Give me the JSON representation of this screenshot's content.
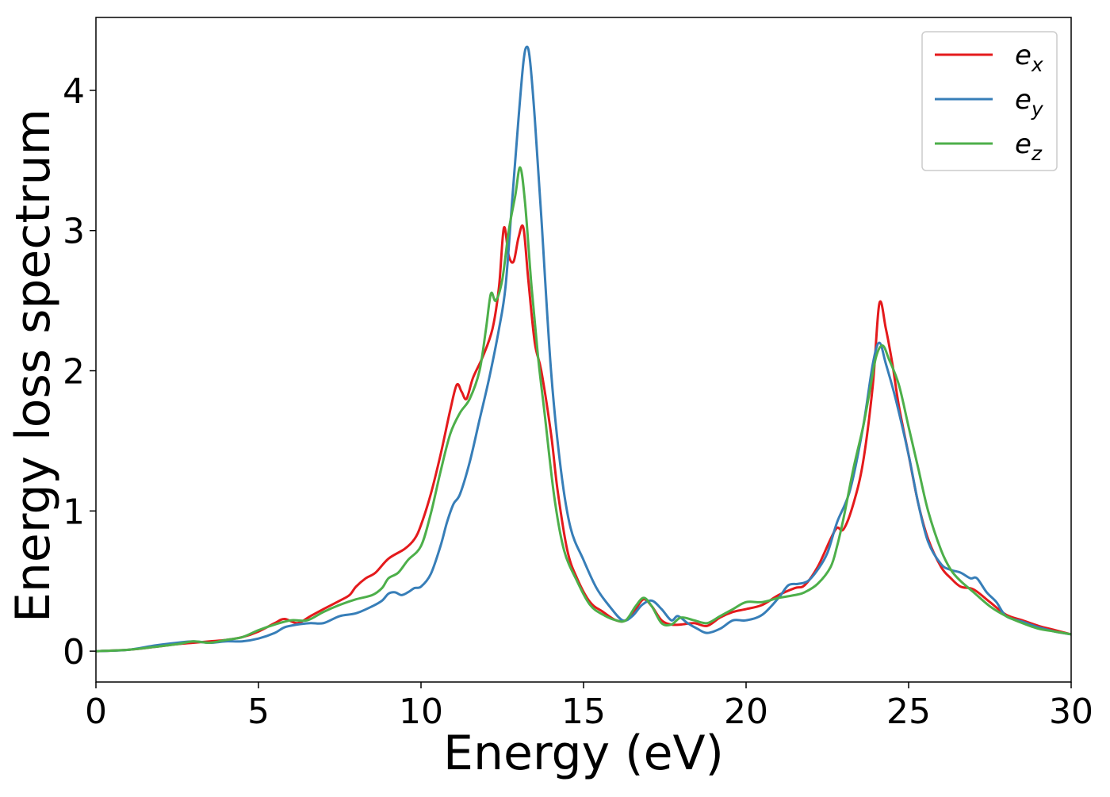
{
  "chart_data": {
    "type": "line",
    "title": "",
    "xlabel": "Energy (eV)",
    "ylabel": "Energy loss spectrum",
    "xlim": [
      0,
      30
    ],
    "ylim": [
      -0.22,
      4.52
    ],
    "xticks": [
      0,
      5,
      10,
      15,
      20,
      25,
      30
    ],
    "yticks": [
      0,
      1,
      2,
      3,
      4
    ],
    "grid": false,
    "legend_position": "top-right",
    "series": [
      {
        "name": "e_x",
        "label_base": "e",
        "label_sub": "x",
        "color": "#e41a1c",
        "x": [
          0,
          1,
          1.8,
          2.5,
          3,
          3.5,
          4,
          4.5,
          5,
          5.5,
          5.8,
          6.2,
          6.6,
          7,
          7.5,
          7.8,
          8,
          8.3,
          8.6,
          9,
          9.5,
          9.8,
          10,
          10.3,
          10.6,
          10.9,
          11.1,
          11.25,
          11.4,
          11.6,
          11.9,
          12.2,
          12.4,
          12.55,
          12.7,
          12.85,
          13,
          13.15,
          13.3,
          13.5,
          13.7,
          14,
          14.2,
          14.5,
          14.8,
          15.2,
          15.6,
          16,
          16.3,
          16.6,
          16.85,
          17.1,
          17.4,
          17.7,
          18,
          18.4,
          18.8,
          19.2,
          19.6,
          20,
          20.5,
          21,
          21.5,
          21.8,
          22.2,
          22.6,
          22.8,
          23,
          23.3,
          23.6,
          23.9,
          24.1,
          24.3,
          24.5,
          24.7,
          25,
          25.3,
          25.6,
          26,
          26.3,
          26.6,
          27,
          27.5,
          28,
          28.5,
          29,
          29.5,
          30
        ],
        "y": [
          0,
          0.01,
          0.03,
          0.05,
          0.06,
          0.07,
          0.08,
          0.1,
          0.14,
          0.2,
          0.23,
          0.2,
          0.25,
          0.3,
          0.36,
          0.4,
          0.46,
          0.52,
          0.56,
          0.66,
          0.73,
          0.8,
          0.9,
          1.12,
          1.4,
          1.72,
          1.9,
          1.85,
          1.8,
          1.95,
          2.1,
          2.3,
          2.6,
          3.02,
          2.82,
          2.78,
          2.95,
          3.02,
          2.65,
          2.2,
          2.0,
          1.55,
          1.15,
          0.72,
          0.52,
          0.35,
          0.28,
          0.22,
          0.22,
          0.3,
          0.37,
          0.32,
          0.22,
          0.19,
          0.19,
          0.2,
          0.18,
          0.24,
          0.28,
          0.3,
          0.33,
          0.4,
          0.45,
          0.47,
          0.6,
          0.8,
          0.88,
          0.87,
          1.05,
          1.35,
          1.9,
          2.48,
          2.3,
          2.05,
          1.75,
          1.4,
          1.05,
          0.8,
          0.6,
          0.52,
          0.46,
          0.44,
          0.35,
          0.26,
          0.22,
          0.18,
          0.15,
          0.12
        ]
      },
      {
        "name": "e_y",
        "label_base": "e",
        "label_sub": "y",
        "color": "#377eb8",
        "x": [
          0,
          1,
          1.8,
          2.5,
          3,
          3.5,
          4,
          4.5,
          5,
          5.5,
          5.8,
          6.2,
          6.6,
          7,
          7.5,
          8,
          8.5,
          8.8,
          9,
          9.2,
          9.4,
          9.6,
          9.8,
          10,
          10.3,
          10.6,
          10.8,
          11,
          11.2,
          11.5,
          11.8,
          12.1,
          12.4,
          12.6,
          12.8,
          13,
          13.15,
          13.25,
          13.35,
          13.5,
          13.7,
          14,
          14.3,
          14.6,
          15,
          15.4,
          15.8,
          16.2,
          16.5,
          16.8,
          17.1,
          17.4,
          17.7,
          17.9,
          18.2,
          18.5,
          18.8,
          19.2,
          19.6,
          20,
          20.5,
          21,
          21.3,
          21.6,
          21.9,
          22.2,
          22.5,
          22.8,
          23.2,
          23.6,
          23.9,
          24.1,
          24.3,
          24.6,
          25,
          25.3,
          25.6,
          26,
          26.3,
          26.6,
          26.9,
          27.1,
          27.4,
          27.7,
          28,
          28.5,
          29,
          29.5,
          30
        ],
        "y": [
          0,
          0.01,
          0.04,
          0.06,
          0.07,
          0.06,
          0.07,
          0.07,
          0.09,
          0.13,
          0.17,
          0.19,
          0.2,
          0.2,
          0.25,
          0.27,
          0.32,
          0.36,
          0.41,
          0.42,
          0.4,
          0.42,
          0.45,
          0.46,
          0.55,
          0.75,
          0.92,
          1.05,
          1.12,
          1.35,
          1.65,
          1.95,
          2.3,
          2.6,
          3.2,
          3.8,
          4.2,
          4.31,
          4.22,
          3.8,
          3.1,
          2.0,
          1.3,
          0.88,
          0.65,
          0.45,
          0.32,
          0.22,
          0.25,
          0.33,
          0.36,
          0.3,
          0.22,
          0.25,
          0.2,
          0.16,
          0.13,
          0.16,
          0.22,
          0.22,
          0.26,
          0.38,
          0.47,
          0.48,
          0.5,
          0.58,
          0.7,
          0.92,
          1.15,
          1.6,
          2.05,
          2.2,
          2.05,
          1.8,
          1.4,
          1.05,
          0.78,
          0.62,
          0.58,
          0.56,
          0.52,
          0.52,
          0.42,
          0.35,
          0.25,
          0.21,
          0.17,
          0.14,
          0.12
        ]
      },
      {
        "name": "e_z",
        "label_base": "e",
        "label_sub": "z",
        "color": "#4daf4a",
        "x": [
          0,
          1,
          1.8,
          2.5,
          3,
          3.5,
          4,
          4.5,
          5,
          5.5,
          6,
          6.5,
          7,
          7.5,
          8,
          8.5,
          8.8,
          9,
          9.3,
          9.6,
          10,
          10.3,
          10.6,
          10.9,
          11.2,
          11.5,
          11.8,
          12,
          12.15,
          12.3,
          12.5,
          12.7,
          12.9,
          13.05,
          13.2,
          13.4,
          13.6,
          13.8,
          14.1,
          14.4,
          14.8,
          15.2,
          15.6,
          16,
          16.3,
          16.6,
          16.85,
          17.1,
          17.4,
          17.7,
          18,
          18.4,
          18.8,
          19.2,
          19.6,
          20,
          20.5,
          21,
          21.5,
          21.8,
          22.2,
          22.6,
          22.8,
          23,
          23.3,
          23.6,
          23.8,
          24,
          24.2,
          24.4,
          24.7,
          25,
          25.3,
          25.6,
          26,
          26.3,
          26.6,
          27,
          27.5,
          28,
          28.5,
          29,
          29.5,
          30
        ],
        "y": [
          0,
          0.01,
          0.03,
          0.05,
          0.07,
          0.06,
          0.08,
          0.1,
          0.15,
          0.19,
          0.22,
          0.22,
          0.28,
          0.33,
          0.37,
          0.4,
          0.45,
          0.52,
          0.56,
          0.65,
          0.75,
          0.98,
          1.28,
          1.55,
          1.7,
          1.8,
          2.0,
          2.3,
          2.55,
          2.5,
          2.65,
          3.0,
          3.25,
          3.45,
          3.2,
          2.6,
          2.1,
          1.7,
          1.1,
          0.72,
          0.5,
          0.33,
          0.26,
          0.22,
          0.22,
          0.32,
          0.38,
          0.32,
          0.2,
          0.19,
          0.24,
          0.22,
          0.2,
          0.25,
          0.3,
          0.35,
          0.35,
          0.38,
          0.4,
          0.42,
          0.48,
          0.6,
          0.75,
          0.95,
          1.3,
          1.6,
          1.85,
          2.1,
          2.18,
          2.08,
          1.9,
          1.6,
          1.3,
          1.0,
          0.72,
          0.58,
          0.5,
          0.42,
          0.32,
          0.25,
          0.2,
          0.16,
          0.14,
          0.12
        ]
      }
    ]
  }
}
